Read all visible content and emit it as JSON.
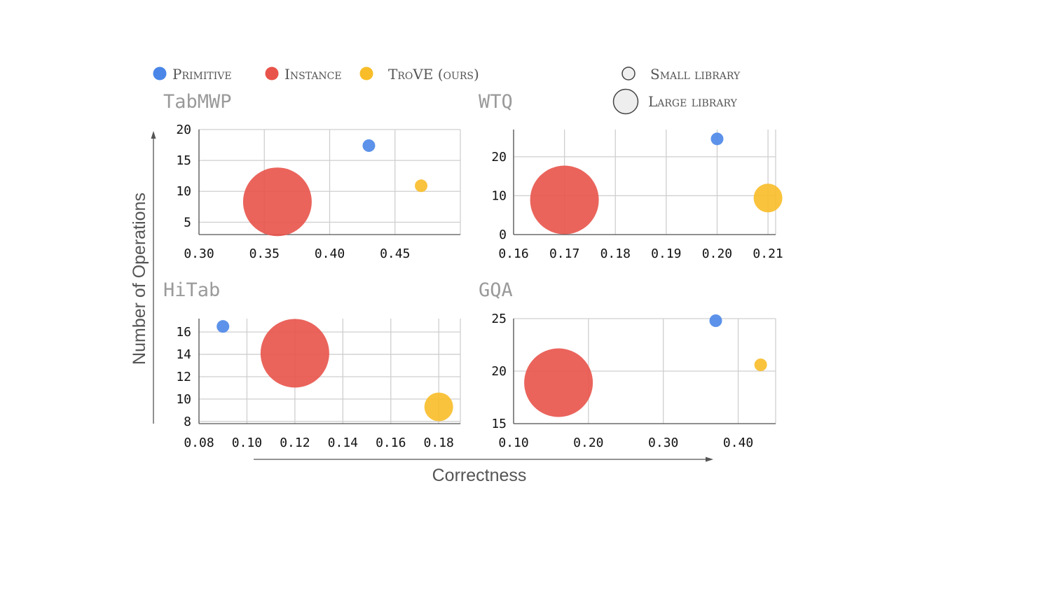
{
  "legend": {
    "methods": [
      {
        "name": "Primitive",
        "color": "#4a86e8"
      },
      {
        "name": "Instance",
        "color": "#e8534a"
      },
      {
        "name": "TroVE (ours)",
        "color": "#f8bd28"
      }
    ],
    "sizes": [
      {
        "label": "Small library"
      },
      {
        "label": "Large library"
      }
    ]
  },
  "axes": {
    "xlabel": "Correctness",
    "ylabel": "Number of Operations"
  },
  "chart_data": [
    {
      "type": "scatter",
      "title": "TabMWP",
      "xlim": [
        0.3,
        0.5
      ],
      "ylim": [
        3,
        20
      ],
      "xticks": [
        0.3,
        0.35,
        0.4,
        0.45
      ],
      "xtick_labels": [
        "0.30",
        "0.35",
        "0.40",
        "0.45"
      ],
      "yticks": [
        5,
        10,
        15,
        20
      ],
      "ytick_labels": [
        "5",
        "10",
        "15",
        "20"
      ],
      "series": [
        {
          "name": "Primitive",
          "x": 0.43,
          "y": 17.4,
          "library": "small"
        },
        {
          "name": "Instance",
          "x": 0.36,
          "y": 8.3,
          "library": "large"
        },
        {
          "name": "TroVE (ours)",
          "x": 0.47,
          "y": 10.9,
          "library": "small"
        }
      ]
    },
    {
      "type": "scatter",
      "title": "WTQ",
      "xlim": [
        0.16,
        0.2115
      ],
      "ylim": [
        0,
        27
      ],
      "xticks": [
        0.16,
        0.17,
        0.18,
        0.19,
        0.2,
        0.21
      ],
      "xtick_labels": [
        "0.16",
        "0.17",
        "0.18",
        "0.19",
        "0.20",
        "0.21"
      ],
      "yticks": [
        0,
        10,
        20
      ],
      "ytick_labels": [
        "0",
        "10",
        "20"
      ],
      "series": [
        {
          "name": "Primitive",
          "x": 0.2,
          "y": 24.6,
          "library": "small"
        },
        {
          "name": "Instance",
          "x": 0.17,
          "y": 8.9,
          "library": "large"
        },
        {
          "name": "TroVE (ours)",
          "x": 0.21,
          "y": 9.4,
          "library": "medium"
        }
      ]
    },
    {
      "type": "scatter",
      "title": "HiTab",
      "xlim": [
        0.08,
        0.189
      ],
      "ylim": [
        7.8,
        17.2
      ],
      "xticks": [
        0.08,
        0.1,
        0.12,
        0.14,
        0.16,
        0.18
      ],
      "xtick_labels": [
        "0.08",
        "0.10",
        "0.12",
        "0.14",
        "0.16",
        "0.18"
      ],
      "yticks": [
        8,
        10,
        12,
        14,
        16
      ],
      "ytick_labels": [
        "8",
        "10",
        "12",
        "14",
        "16"
      ],
      "series": [
        {
          "name": "Primitive",
          "x": 0.09,
          "y": 16.5,
          "library": "small"
        },
        {
          "name": "Instance",
          "x": 0.12,
          "y": 14.1,
          "library": "large"
        },
        {
          "name": "TroVE (ours)",
          "x": 0.18,
          "y": 9.3,
          "library": "medium"
        }
      ]
    },
    {
      "type": "scatter",
      "title": "GQA",
      "xlim": [
        0.1,
        0.45
      ],
      "ylim": [
        15,
        25
      ],
      "xticks": [
        0.1,
        0.2,
        0.3,
        0.4
      ],
      "xtick_labels": [
        "0.10",
        "0.20",
        "0.30",
        "0.40"
      ],
      "yticks": [
        15,
        20,
        25
      ],
      "ytick_labels": [
        "15",
        "20",
        "25"
      ],
      "series": [
        {
          "name": "Primitive",
          "x": 0.37,
          "y": 24.8,
          "library": "small"
        },
        {
          "name": "Instance",
          "x": 0.16,
          "y": 18.9,
          "library": "large"
        },
        {
          "name": "TroVE (ours)",
          "x": 0.43,
          "y": 20.6,
          "library": "small"
        }
      ]
    }
  ]
}
